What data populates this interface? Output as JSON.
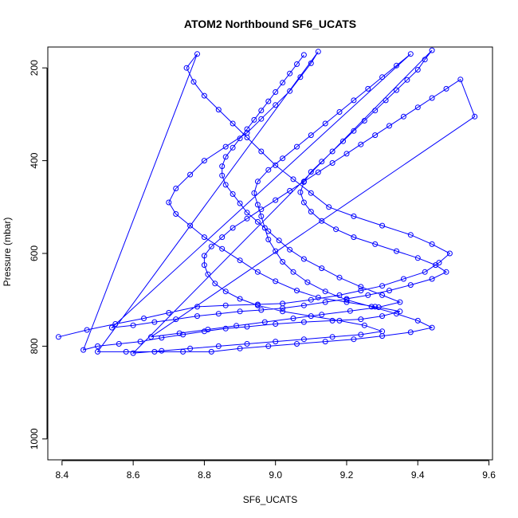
{
  "chart_data": {
    "type": "scatter",
    "title": "ATOM2 Northbound SF6_UCATS",
    "xlabel": "SF6_UCATS",
    "ylabel": "Pressure (mbar)",
    "xlim": [
      8.36,
      9.61
    ],
    "ylim": [
      1045,
      155
    ],
    "y_axis_inverted": true,
    "x_ticks": [
      "8.4",
      "8.6",
      "8.8",
      "9.0",
      "9.2",
      "9.4",
      "9.6"
    ],
    "y_ticks": [
      "200",
      "400",
      "600",
      "800",
      "1000"
    ],
    "grid": false,
    "legend": "none",
    "marker": "open-circle",
    "connected_by_lines": true,
    "series_color": "#0000ff",
    "series": [
      {
        "points": [
          [
            8.39,
            780
          ],
          [
            8.47,
            765
          ],
          [
            8.55,
            752
          ],
          [
            8.63,
            740
          ],
          [
            8.7,
            728
          ],
          [
            8.78,
            715
          ],
          [
            8.86,
            712
          ],
          [
            8.95,
            710
          ],
          [
            9.02,
            708
          ],
          [
            9.1,
            700
          ],
          [
            9.18,
            690
          ],
          [
            9.24,
            680
          ],
          [
            9.3,
            670
          ],
          [
            9.36,
            655
          ],
          [
            9.42,
            640
          ],
          [
            9.46,
            620
          ],
          [
            9.49,
            600
          ],
          [
            9.44,
            580
          ],
          [
            9.38,
            560
          ],
          [
            9.3,
            540
          ],
          [
            9.22,
            520
          ],
          [
            9.15,
            500
          ],
          [
            9.1,
            470
          ],
          [
            9.05,
            440
          ],
          [
            9.0,
            410
          ],
          [
            8.96,
            380
          ],
          [
            8.92,
            350
          ],
          [
            8.88,
            320
          ],
          [
            8.84,
            290
          ],
          [
            8.8,
            260
          ],
          [
            8.77,
            230
          ],
          [
            8.75,
            200
          ],
          [
            8.78,
            170
          ],
          [
            8.46,
            808
          ],
          [
            8.5,
            800
          ],
          [
            8.56,
            795
          ],
          [
            8.62,
            790
          ],
          [
            8.68,
            782
          ],
          [
            8.74,
            775
          ],
          [
            8.8,
            768
          ],
          [
            8.86,
            762
          ],
          [
            8.92,
            758
          ],
          [
            9.0,
            752
          ],
          [
            9.08,
            748
          ],
          [
            9.16,
            745
          ],
          [
            9.24,
            742
          ],
          [
            9.3,
            735
          ],
          [
            9.35,
            725
          ],
          [
            9.28,
            715
          ],
          [
            9.2,
            705
          ],
          [
            9.12,
            695
          ],
          [
            9.06,
            680
          ],
          [
            9.0,
            660
          ],
          [
            8.95,
            640
          ],
          [
            8.9,
            615
          ],
          [
            8.85,
            590
          ],
          [
            8.8,
            565
          ],
          [
            8.76,
            540
          ],
          [
            8.72,
            515
          ],
          [
            8.7,
            490
          ],
          [
            8.72,
            460
          ],
          [
            8.76,
            430
          ],
          [
            8.8,
            400
          ],
          [
            8.86,
            370
          ],
          [
            8.92,
            340
          ],
          [
            8.96,
            310
          ],
          [
            9.0,
            280
          ],
          [
            9.04,
            250
          ],
          [
            9.07,
            220
          ],
          [
            9.1,
            190
          ],
          [
            9.12,
            165
          ],
          [
            8.5,
            812
          ],
          [
            8.58,
            812
          ],
          [
            8.66,
            812
          ],
          [
            8.74,
            812
          ],
          [
            8.82,
            812
          ],
          [
            8.9,
            805
          ],
          [
            8.98,
            800
          ],
          [
            9.06,
            795
          ],
          [
            9.14,
            790
          ],
          [
            9.22,
            785
          ],
          [
            9.3,
            778
          ],
          [
            9.38,
            770
          ],
          [
            9.44,
            760
          ],
          [
            9.4,
            745
          ],
          [
            9.34,
            730
          ],
          [
            9.27,
            715
          ],
          [
            9.2,
            700
          ],
          [
            9.14,
            682
          ],
          [
            9.09,
            662
          ],
          [
            9.05,
            640
          ],
          [
            9.02,
            618
          ],
          [
            9.0,
            595
          ],
          [
            8.98,
            570
          ],
          [
            8.97,
            545
          ],
          [
            8.96,
            520
          ],
          [
            8.95,
            495
          ],
          [
            8.94,
            470
          ],
          [
            8.95,
            445
          ],
          [
            8.98,
            420
          ],
          [
            9.02,
            395
          ],
          [
            9.06,
            370
          ],
          [
            9.1,
            345
          ],
          [
            9.14,
            320
          ],
          [
            9.18,
            295
          ],
          [
            9.22,
            270
          ],
          [
            9.26,
            245
          ],
          [
            9.3,
            220
          ],
          [
            9.34,
            195
          ],
          [
            9.38,
            170
          ],
          [
            8.54,
            760
          ],
          [
            8.6,
            755
          ],
          [
            8.66,
            748
          ],
          [
            8.72,
            742
          ],
          [
            8.78,
            735
          ],
          [
            8.84,
            730
          ],
          [
            8.9,
            725
          ],
          [
            8.96,
            722
          ],
          [
            9.02,
            718
          ],
          [
            9.08,
            712
          ],
          [
            9.14,
            705
          ],
          [
            9.2,
            698
          ],
          [
            9.26,
            690
          ],
          [
            9.32,
            680
          ],
          [
            9.38,
            668
          ],
          [
            9.44,
            655
          ],
          [
            9.48,
            640
          ],
          [
            9.45,
            625
          ],
          [
            9.4,
            610
          ],
          [
            9.34,
            595
          ],
          [
            9.28,
            580
          ],
          [
            9.22,
            565
          ],
          [
            9.17,
            548
          ],
          [
            9.13,
            530
          ],
          [
            9.1,
            510
          ],
          [
            9.08,
            490
          ],
          [
            9.07,
            468
          ],
          [
            9.08,
            446
          ],
          [
            9.1,
            424
          ],
          [
            9.13,
            402
          ],
          [
            9.16,
            380
          ],
          [
            9.19,
            358
          ],
          [
            9.22,
            336
          ],
          [
            9.25,
            314
          ],
          [
            9.28,
            292
          ],
          [
            9.31,
            270
          ],
          [
            9.34,
            248
          ],
          [
            9.37,
            226
          ],
          [
            9.4,
            204
          ],
          [
            9.42,
            182
          ],
          [
            9.44,
            162
          ],
          [
            8.6,
            815
          ],
          [
            8.68,
            810
          ],
          [
            8.76,
            805
          ],
          [
            8.84,
            800
          ],
          [
            8.92,
            795
          ],
          [
            9.0,
            790
          ],
          [
            9.08,
            785
          ],
          [
            9.16,
            780
          ],
          [
            9.24,
            775
          ],
          [
            9.3,
            768
          ],
          [
            9.25,
            755
          ],
          [
            9.18,
            745
          ],
          [
            9.1,
            735
          ],
          [
            9.02,
            725
          ],
          [
            8.95,
            712
          ],
          [
            8.9,
            698
          ],
          [
            8.86,
            682
          ],
          [
            8.83,
            665
          ],
          [
            8.81,
            645
          ],
          [
            8.8,
            625
          ],
          [
            8.8,
            605
          ],
          [
            8.82,
            585
          ],
          [
            8.85,
            565
          ],
          [
            8.88,
            545
          ],
          [
            8.92,
            525
          ],
          [
            8.96,
            505
          ],
          [
            9.0,
            485
          ],
          [
            9.04,
            465
          ],
          [
            9.08,
            445
          ],
          [
            9.12,
            425
          ],
          [
            9.16,
            405
          ],
          [
            9.2,
            385
          ],
          [
            9.24,
            365
          ],
          [
            9.28,
            345
          ],
          [
            9.32,
            325
          ],
          [
            9.36,
            305
          ],
          [
            9.4,
            285
          ],
          [
            9.44,
            265
          ],
          [
            9.48,
            245
          ],
          [
            9.52,
            225
          ],
          [
            9.56,
            305
          ],
          [
            8.65,
            780
          ],
          [
            8.73,
            772
          ],
          [
            8.81,
            764
          ],
          [
            8.89,
            756
          ],
          [
            8.97,
            748
          ],
          [
            9.05,
            740
          ],
          [
            9.13,
            732
          ],
          [
            9.21,
            724
          ],
          [
            9.29,
            716
          ],
          [
            9.35,
            705
          ],
          [
            9.3,
            690
          ],
          [
            9.24,
            672
          ],
          [
            9.18,
            652
          ],
          [
            9.13,
            632
          ],
          [
            9.08,
            612
          ],
          [
            9.04,
            592
          ],
          [
            9.01,
            572
          ],
          [
            8.98,
            552
          ],
          [
            8.95,
            532
          ],
          [
            8.92,
            512
          ],
          [
            8.9,
            492
          ],
          [
            8.88,
            472
          ],
          [
            8.86,
            452
          ],
          [
            8.85,
            432
          ],
          [
            8.85,
            412
          ],
          [
            8.86,
            392
          ],
          [
            8.88,
            372
          ],
          [
            8.9,
            352
          ],
          [
            8.92,
            332
          ],
          [
            8.94,
            312
          ],
          [
            8.96,
            292
          ],
          [
            8.98,
            272
          ],
          [
            9.0,
            252
          ],
          [
            9.02,
            232
          ],
          [
            9.04,
            212
          ],
          [
            9.06,
            192
          ],
          [
            9.08,
            172
          ]
        ]
      }
    ]
  }
}
